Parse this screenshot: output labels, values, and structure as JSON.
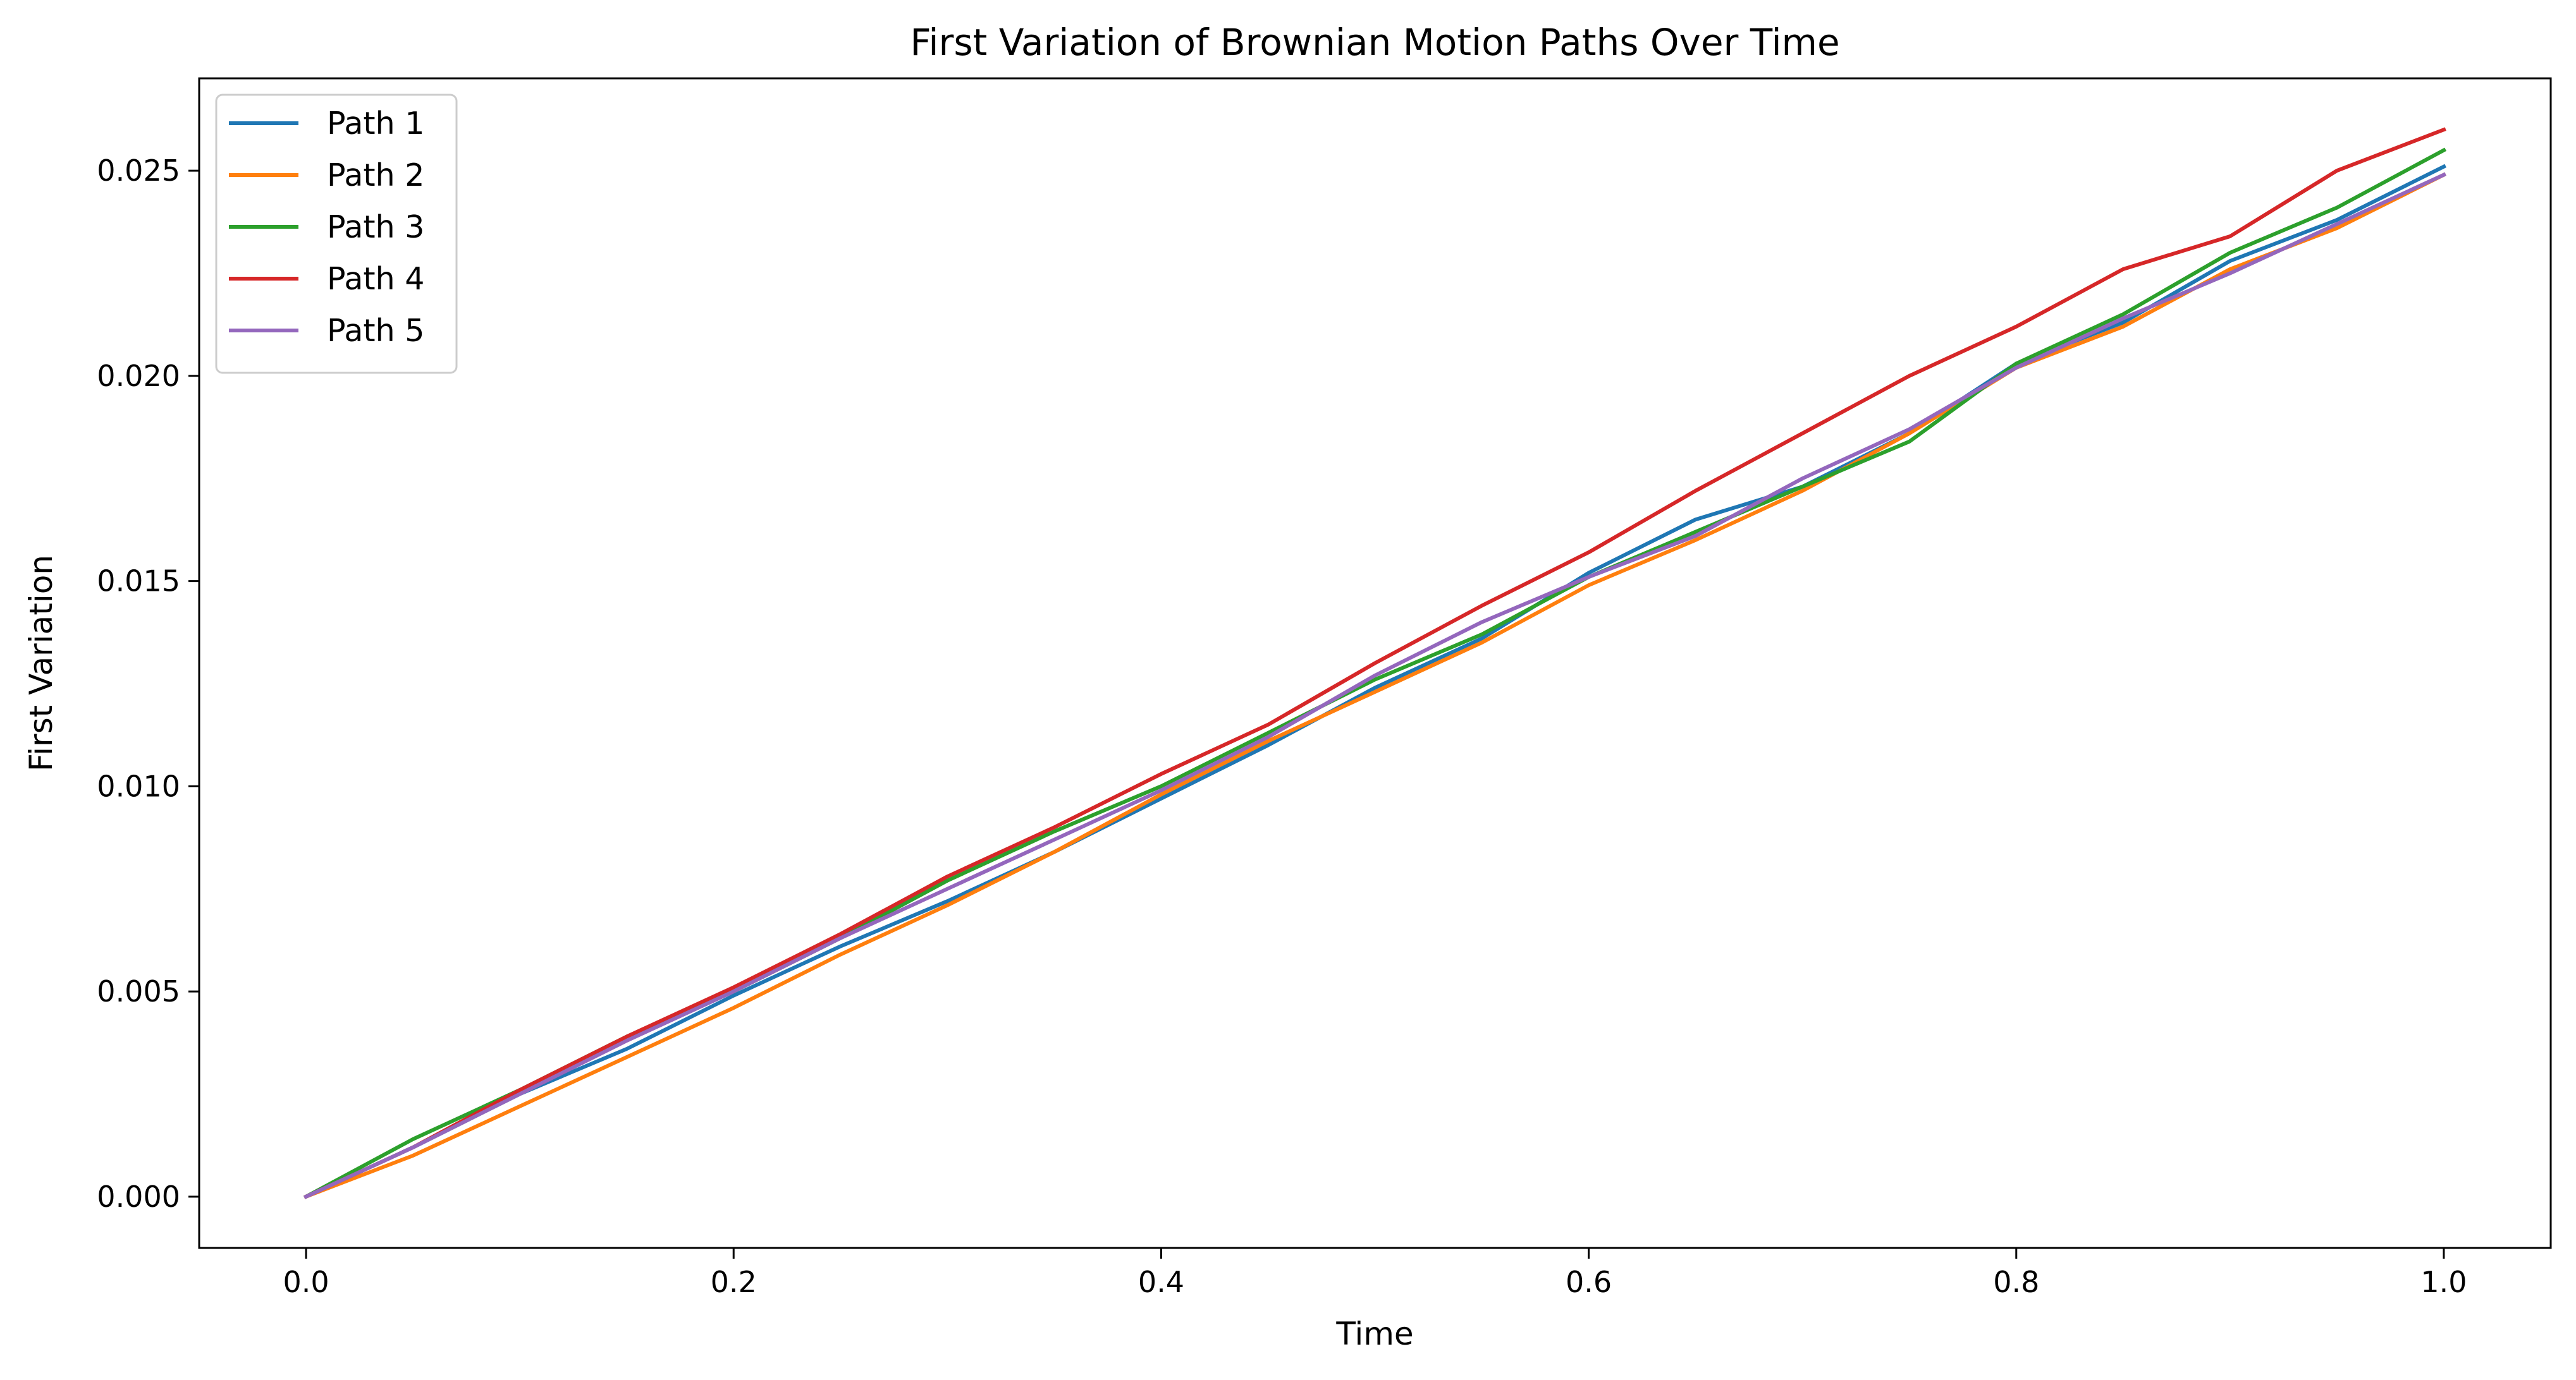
{
  "chart_data": {
    "type": "line",
    "title": "First Variation of Brownian Motion Paths Over Time",
    "xlabel": "Time",
    "ylabel": "First Variation",
    "xlim": [
      -0.05,
      1.05
    ],
    "ylim": [
      -0.00125,
      0.02725
    ],
    "xticks": [
      0.0,
      0.2,
      0.4,
      0.6,
      0.8,
      1.0
    ],
    "xtick_labels": [
      "0.0",
      "0.2",
      "0.4",
      "0.6",
      "0.8",
      "1.0"
    ],
    "yticks": [
      0.0,
      0.005,
      0.01,
      0.015,
      0.02,
      0.025
    ],
    "ytick_labels": [
      "0.000",
      "0.005",
      "0.010",
      "0.015",
      "0.020",
      "0.025"
    ],
    "grid": false,
    "legend_position": "upper-left",
    "series": [
      {
        "name": "Path 1",
        "color": "#1f77b4",
        "x": [
          0.0,
          0.05,
          0.1,
          0.15,
          0.2,
          0.25,
          0.3,
          0.35,
          0.4,
          0.45,
          0.5,
          0.55,
          0.6,
          0.65,
          0.7,
          0.75,
          0.8,
          0.85,
          0.9,
          0.95,
          1.0
        ],
        "values": [
          0.0,
          0.0012,
          0.0025,
          0.0036,
          0.0049,
          0.0061,
          0.0072,
          0.0084,
          0.0097,
          0.011,
          0.0124,
          0.0136,
          0.0152,
          0.0165,
          0.0173,
          0.0186,
          0.0203,
          0.0213,
          0.0228,
          0.0238,
          0.0251
        ]
      },
      {
        "name": "Path 2",
        "color": "#ff7f0e",
        "x": [
          0.0,
          0.05,
          0.1,
          0.15,
          0.2,
          0.25,
          0.3,
          0.35,
          0.4,
          0.45,
          0.5,
          0.55,
          0.6,
          0.65,
          0.7,
          0.75,
          0.8,
          0.85,
          0.9,
          0.95,
          1.0
        ],
        "values": [
          0.0,
          0.001,
          0.0022,
          0.0034,
          0.0046,
          0.0059,
          0.0071,
          0.0084,
          0.0098,
          0.0111,
          0.0123,
          0.0135,
          0.0149,
          0.016,
          0.0172,
          0.0186,
          0.0202,
          0.0212,
          0.0226,
          0.0236,
          0.0249
        ]
      },
      {
        "name": "Path 3",
        "color": "#2ca02c",
        "x": [
          0.0,
          0.05,
          0.1,
          0.15,
          0.2,
          0.25,
          0.3,
          0.35,
          0.4,
          0.45,
          0.5,
          0.55,
          0.6,
          0.65,
          0.7,
          0.75,
          0.8,
          0.85,
          0.9,
          0.95,
          1.0
        ],
        "values": [
          0.0,
          0.0014,
          0.0026,
          0.0039,
          0.005,
          0.0063,
          0.0077,
          0.0089,
          0.01,
          0.0113,
          0.0126,
          0.0137,
          0.0151,
          0.0162,
          0.0173,
          0.0184,
          0.0203,
          0.0215,
          0.023,
          0.0241,
          0.0255
        ]
      },
      {
        "name": "Path 4",
        "color": "#d62728",
        "x": [
          0.0,
          0.05,
          0.1,
          0.15,
          0.2,
          0.25,
          0.3,
          0.35,
          0.4,
          0.45,
          0.5,
          0.55,
          0.6,
          0.65,
          0.7,
          0.75,
          0.8,
          0.85,
          0.9,
          0.95,
          1.0
        ],
        "values": [
          0.0,
          0.0012,
          0.0026,
          0.0039,
          0.0051,
          0.0064,
          0.0078,
          0.009,
          0.0103,
          0.0115,
          0.013,
          0.0144,
          0.0157,
          0.0172,
          0.0186,
          0.02,
          0.0212,
          0.0226,
          0.0234,
          0.025,
          0.026
        ]
      },
      {
        "name": "Path 5",
        "color": "#9467bd",
        "x": [
          0.0,
          0.05,
          0.1,
          0.15,
          0.2,
          0.25,
          0.3,
          0.35,
          0.4,
          0.45,
          0.5,
          0.55,
          0.6,
          0.65,
          0.7,
          0.75,
          0.8,
          0.85,
          0.9,
          0.95,
          1.0
        ],
        "values": [
          0.0,
          0.0012,
          0.0025,
          0.0038,
          0.005,
          0.0063,
          0.0075,
          0.0087,
          0.0099,
          0.0112,
          0.0127,
          0.014,
          0.0151,
          0.0161,
          0.0175,
          0.0187,
          0.0202,
          0.0214,
          0.0225,
          0.0237,
          0.0249
        ]
      }
    ]
  }
}
